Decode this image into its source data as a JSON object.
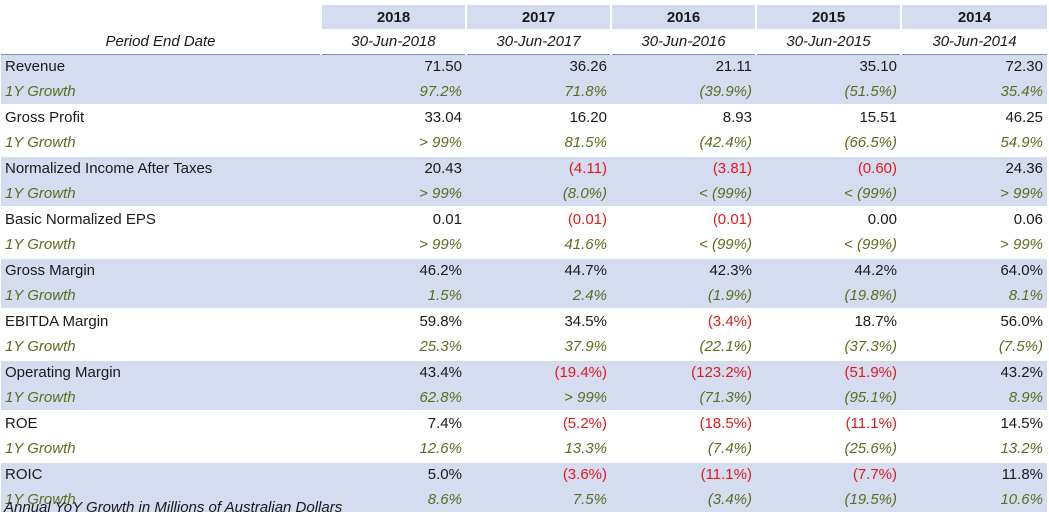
{
  "header": {
    "years": [
      "2018",
      "2017",
      "2016",
      "2015",
      "2014"
    ],
    "period_label": "Period End Date",
    "dates": [
      "30-Jun-2018",
      "30-Jun-2017",
      "30-Jun-2016",
      "30-Jun-2015",
      "30-Jun-2014"
    ]
  },
  "rows": [
    {
      "label": "Revenue",
      "values": [
        "71.50",
        "36.26",
        "21.11",
        "35.10",
        "72.30"
      ],
      "growth_label": "1Y Growth",
      "growth": [
        "97.2%",
        "71.8%",
        "(39.9%)",
        "(51.5%)",
        "35.4%"
      ]
    },
    {
      "label": "Gross Profit",
      "values": [
        "33.04",
        "16.20",
        "8.93",
        "15.51",
        "46.25"
      ],
      "growth_label": "1Y Growth",
      "growth": [
        "> 99%",
        "81.5%",
        "(42.4%)",
        "(66.5%)",
        "54.9%"
      ]
    },
    {
      "label": "Normalized Income After Taxes",
      "values": [
        "20.43",
        "(4.11)",
        "(3.81)",
        "(0.60)",
        "24.36"
      ],
      "growth_label": "1Y Growth",
      "growth": [
        "> 99%",
        "(8.0%)",
        "< (99%)",
        "< (99%)",
        "> 99%"
      ]
    },
    {
      "label": "Basic Normalized EPS",
      "values": [
        "0.01",
        "(0.01)",
        "(0.01)",
        "0.00",
        "0.06"
      ],
      "growth_label": "1Y Growth",
      "growth": [
        "> 99%",
        "41.6%",
        "< (99%)",
        "< (99%)",
        "> 99%"
      ]
    },
    {
      "label": "Gross Margin",
      "values": [
        "46.2%",
        "44.7%",
        "42.3%",
        "44.2%",
        "64.0%"
      ],
      "growth_label": "1Y Growth",
      "growth": [
        "1.5%",
        "2.4%",
        "(1.9%)",
        "(19.8%)",
        "8.1%"
      ]
    },
    {
      "label": "EBITDA Margin",
      "values": [
        "59.8%",
        "34.5%",
        "(3.4%)",
        "18.7%",
        "56.0%"
      ],
      "growth_label": "1Y Growth",
      "growth": [
        "25.3%",
        "37.9%",
        "(22.1%)",
        "(37.3%)",
        "(7.5%)"
      ]
    },
    {
      "label": "Operating Margin",
      "values": [
        "43.4%",
        "(19.4%)",
        "(123.2%)",
        "(51.9%)",
        "43.2%"
      ],
      "growth_label": "1Y Growth",
      "growth": [
        "62.8%",
        "> 99%",
        "(71.3%)",
        "(95.1%)",
        "8.9%"
      ]
    },
    {
      "label": "ROE",
      "values": [
        "7.4%",
        "(5.2%)",
        "(18.5%)",
        "(11.1%)",
        "14.5%"
      ],
      "growth_label": "1Y Growth",
      "growth": [
        "12.6%",
        "13.3%",
        "(7.4%)",
        "(25.6%)",
        "13.2%"
      ]
    },
    {
      "label": "ROIC",
      "values": [
        "5.0%",
        "(3.6%)",
        "(11.1%)",
        "(7.7%)",
        "11.8%"
      ],
      "growth_label": "1Y Growth",
      "growth": [
        "8.6%",
        "7.5%",
        "(3.4%)",
        "(19.5%)",
        "10.6%"
      ]
    }
  ],
  "footnote": "Annual YoY Growth in Millions of Australian Dollars",
  "colors": {
    "shade": "#d6dcf0",
    "negative": "#e01b1b",
    "growth_text": "#5a6e1e"
  }
}
